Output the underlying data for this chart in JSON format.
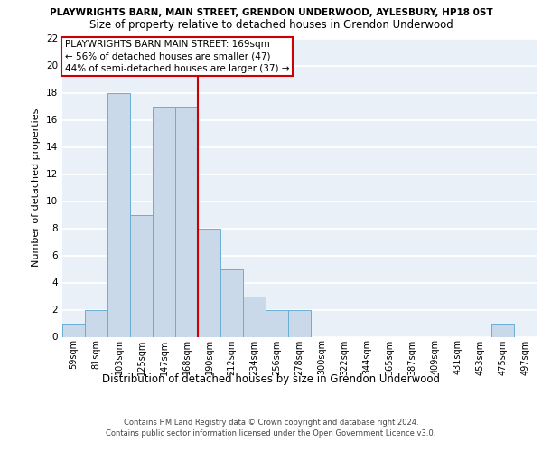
{
  "title1": "PLAYWRIGHTS BARN, MAIN STREET, GRENDON UNDERWOOD, AYLESBURY, HP18 0ST",
  "title2": "Size of property relative to detached houses in Grendon Underwood",
  "xlabel": "Distribution of detached houses by size in Grendon Underwood",
  "ylabel": "Number of detached properties",
  "footnote1": "Contains HM Land Registry data © Crown copyright and database right 2024.",
  "footnote2": "Contains public sector information licensed under the Open Government Licence v3.0.",
  "bar_labels": [
    "59sqm",
    "81sqm",
    "103sqm",
    "125sqm",
    "147sqm",
    "168sqm",
    "190sqm",
    "212sqm",
    "234sqm",
    "256sqm",
    "278sqm",
    "300sqm",
    "322sqm",
    "344sqm",
    "365sqm",
    "387sqm",
    "409sqm",
    "431sqm",
    "453sqm",
    "475sqm",
    "497sqm"
  ],
  "bar_values": [
    1,
    2,
    18,
    9,
    17,
    17,
    8,
    5,
    3,
    2,
    2,
    0,
    0,
    0,
    0,
    0,
    0,
    0,
    0,
    1,
    0
  ],
  "bar_color": "#c9d9ea",
  "bar_edge_color": "#6aadd5",
  "background_color": "#eaf0f8",
  "grid_color": "#ffffff",
  "vline_x": 5.5,
  "vline_color": "#cc0000",
  "annotation_text": "PLAYWRIGHTS BARN MAIN STREET: 169sqm\n← 56% of detached houses are smaller (47)\n44% of semi-detached houses are larger (37) →",
  "annotation_box_facecolor": "#ffffff",
  "annotation_box_edgecolor": "#cc0000",
  "ylim": [
    0,
    22
  ],
  "yticks": [
    0,
    2,
    4,
    6,
    8,
    10,
    12,
    14,
    16,
    18,
    20,
    22
  ],
  "title1_fontsize": 7.5,
  "title2_fontsize": 8.5,
  "ylabel_fontsize": 8,
  "xlabel_fontsize": 8.5,
  "footnote_fontsize": 6.0,
  "tick_fontsize": 7,
  "annot_fontsize": 7.5
}
